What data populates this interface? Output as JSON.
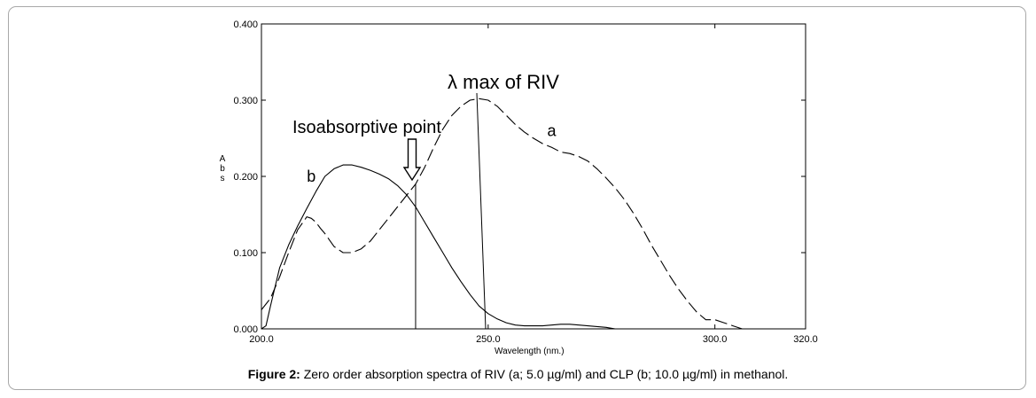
{
  "caption": {
    "label": "Figure 2:",
    "text": "Zero order absorption spectra of RIV (a; 5.0 µg/ml) and CLP (b; 10.0 µg/ml) in methanol."
  },
  "chart_data": {
    "type": "line",
    "title": "",
    "xlabel": "Wavelength (nm.)",
    "ylabel": "Abs",
    "xlim": [
      200,
      320
    ],
    "ylim": [
      0,
      0.4
    ],
    "x_ticks": [
      200,
      250,
      300,
      320
    ],
    "x_tick_labels": [
      "200.0",
      "250.0",
      "300.0",
      "320.0"
    ],
    "y_ticks": [
      0,
      0.1,
      0.2,
      0.3,
      0.4
    ],
    "y_tick_labels": [
      "0.000",
      "0.100",
      "0.200",
      "0.300",
      "0.400"
    ],
    "grid": false,
    "series": [
      {
        "name": "a",
        "style": "dashed",
        "x": [
          200,
          202,
          204,
          206,
          208,
          210,
          211,
          212,
          213,
          214,
          216,
          218,
          220,
          222,
          224,
          226,
          228,
          230,
          232,
          234,
          236,
          238,
          240,
          242,
          244,
          246,
          248,
          250,
          252,
          254,
          256,
          258,
          260,
          262,
          264,
          266,
          268,
          270,
          272,
          274,
          276,
          278,
          280,
          282,
          284,
          286,
          288,
          290,
          292,
          294,
          296,
          298,
          300,
          302,
          304,
          306,
          308
        ],
        "y": [
          0.025,
          0.04,
          0.068,
          0.1,
          0.13,
          0.147,
          0.145,
          0.14,
          0.132,
          0.125,
          0.108,
          0.1,
          0.1,
          0.105,
          0.115,
          0.13,
          0.145,
          0.16,
          0.175,
          0.19,
          0.212,
          0.238,
          0.262,
          0.28,
          0.292,
          0.3,
          0.302,
          0.3,
          0.292,
          0.28,
          0.268,
          0.258,
          0.25,
          0.243,
          0.238,
          0.232,
          0.23,
          0.226,
          0.22,
          0.21,
          0.198,
          0.185,
          0.17,
          0.152,
          0.132,
          0.11,
          0.09,
          0.07,
          0.052,
          0.036,
          0.022,
          0.012,
          0.012,
          0.008,
          0.004,
          0.0,
          0.0
        ]
      },
      {
        "name": "b",
        "style": "solid",
        "x": [
          200,
          201,
          202,
          204,
          206,
          208,
          210,
          212,
          214,
          216,
          218,
          220,
          222,
          224,
          226,
          228,
          230,
          232,
          234,
          236,
          238,
          240,
          242,
          244,
          246,
          248,
          250,
          252,
          254,
          256,
          258,
          260,
          262,
          264,
          266,
          268,
          270,
          272,
          274,
          276,
          278
        ],
        "y": [
          0.0,
          0.004,
          0.03,
          0.08,
          0.11,
          0.135,
          0.158,
          0.18,
          0.2,
          0.21,
          0.215,
          0.215,
          0.212,
          0.208,
          0.203,
          0.197,
          0.188,
          0.176,
          0.16,
          0.14,
          0.12,
          0.1,
          0.08,
          0.062,
          0.045,
          0.03,
          0.02,
          0.013,
          0.008,
          0.005,
          0.004,
          0.004,
          0.004,
          0.005,
          0.006,
          0.006,
          0.005,
          0.004,
          0.003,
          0.002,
          0.0
        ]
      }
    ],
    "series_labels": [
      {
        "text": "a",
        "x": 264,
        "y": 0.253
      },
      {
        "text": "b",
        "x": 211,
        "y": 0.193
      }
    ],
    "annotations": [
      {
        "text": "Isoabsorptive point",
        "x": 234,
        "y": 0.19
      },
      {
        "text": "λ max of RIV",
        "x": 248,
        "y": 0.302
      }
    ]
  }
}
